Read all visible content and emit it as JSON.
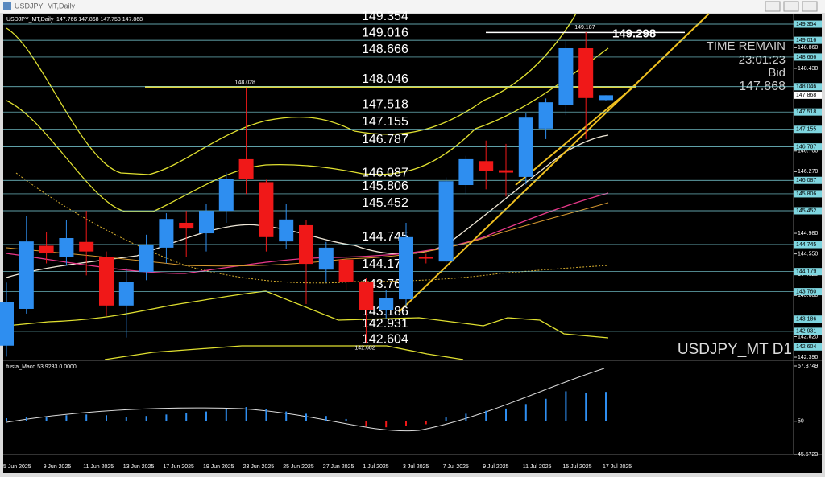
{
  "window": {
    "title": "USDJPY_MT,Daily"
  },
  "chart_data": {
    "type": "candlestick",
    "title": "USDJPY_MT,Daily",
    "subtitle": "147.766 147.868 147.758 147.868",
    "categories": [
      "5 Jun 2025",
      null,
      "9 Jun 2025",
      null,
      "11 Jun 2025",
      null,
      "13 Jun 2025",
      null,
      "17 Jun 2025",
      null,
      "19 Jun 2025",
      null,
      "23 Jun 2025",
      null,
      "25 Jun 2025",
      null,
      "27 Jun 2025",
      null,
      "1 Jul 2025",
      null,
      "3 Jul 2025",
      null,
      "7 Jul 2025",
      null,
      "9 Jul 2025",
      null,
      "11 Jul 2025",
      null,
      "15 Jul 2025",
      null,
      "17 Jul 2025"
    ],
    "open": [
      142.63,
      143.4,
      144.72,
      144.48,
      144.8,
      144.48,
      143.47,
      144.17,
      144.68,
      145.2,
      144.98,
      145.45,
      146.53,
      146.05,
      144.81,
      145.15,
      144.22,
      144.43,
      143.97,
      143.38,
      143.6,
      144.48,
      144.39,
      145.99,
      146.49,
      146.3,
      146.16,
      147.17,
      147.67,
      148.85,
      147.766
    ],
    "high": [
      143.95,
      145.35,
      145.0,
      145.25,
      145.45,
      144.6,
      144.25,
      144.95,
      145.4,
      145.45,
      145.6,
      146.25,
      148.028,
      146.1,
      145.6,
      145.25,
      144.8,
      144.5,
      144.05,
      143.8,
      145.2,
      144.55,
      146.15,
      146.6,
      146.92,
      146.85,
      147.5,
      147.8,
      149.0,
      149.187,
      147.868
    ],
    "low": [
      142.4,
      143.3,
      144.35,
      144.3,
      144.1,
      143.25,
      142.8,
      144.0,
      144.35,
      144.48,
      144.6,
      145.2,
      145.8,
      144.6,
      144.65,
      143.5,
      143.95,
      143.8,
      142.682,
      143.2,
      143.45,
      144.35,
      144.3,
      145.8,
      145.9,
      145.75,
      146.0,
      146.95,
      147.45,
      146.95,
      147.758
    ],
    "close": [
      143.55,
      144.81,
      144.56,
      144.88,
      144.6,
      143.47,
      143.97,
      144.73,
      145.28,
      145.08,
      145.45,
      146.12,
      146.12,
      144.9,
      145.27,
      144.34,
      144.68,
      143.97,
      143.38,
      143.63,
      144.9,
      144.45,
      146.07,
      146.53,
      146.29,
      146.25,
      147.4,
      147.72,
      148.85,
      147.81,
      147.868
    ],
    "up_color": "#2e8ef0",
    "down_color": "#f01818",
    "ylim": [
      142.34,
      149.573
    ],
    "yticks": [
      {
        "value": 148.86,
        "label": "148.860"
      },
      {
        "value": 148.43,
        "label": "148.430"
      },
      {
        "value": 146.7,
        "label": "146.700"
      },
      {
        "value": 146.27,
        "label": "146.270"
      },
      {
        "value": 144.98,
        "label": "144.980"
      },
      {
        "value": 144.55,
        "label": "144.550"
      },
      {
        "value": 144.12,
        "label": "144.120"
      },
      {
        "value": 143.68,
        "label": "143.680"
      },
      {
        "value": 142.82,
        "label": "142.820"
      },
      {
        "value": 142.39,
        "label": "142.390"
      }
    ],
    "levels": [
      149.354,
      149.016,
      148.666,
      148.046,
      147.518,
      147.155,
      146.787,
      146.087,
      145.806,
      145.452,
      144.745,
      144.179,
      143.76,
      143.186,
      142.931,
      142.604
    ],
    "level_labels": [
      "149.354",
      "149.016",
      "148.666",
      "148.046",
      "147.518",
      "147.155",
      "146.787",
      "146.087",
      "145.806",
      "145.452",
      "144.745",
      "144.179",
      "143.760",
      "143.186",
      "142.931",
      "142.604"
    ],
    "level_color": "#7fd6e0",
    "marker_price": 149.298,
    "info": {
      "time_label": "TIME REMAIN",
      "time": "23:01:23",
      "bid_label": "Bid",
      "bid": 147.868
    },
    "symbol_label": "USDJPY_MT D1"
  },
  "macd": {
    "type": "histogram",
    "title": "fusta_Macd 53.9233 0.0000",
    "values": [
      50.4,
      50.5,
      50.6,
      50.8,
      50.9,
      50.8,
      50.6,
      50.7,
      50.9,
      51.1,
      51.3,
      51.6,
      51.9,
      51.6,
      51.3,
      51.0,
      50.7,
      50.3,
      49.3,
      49.2,
      49.4,
      49.6,
      50.5,
      51.0,
      51.4,
      51.7,
      52.3,
      53.0,
      54.0,
      53.8,
      53.9233
    ],
    "ylim": [
      45.5723,
      57.3749
    ],
    "yticks": [
      57.3749,
      50,
      45.5723
    ],
    "up_color": "#2e8ef0",
    "down_color": "#f01818"
  }
}
